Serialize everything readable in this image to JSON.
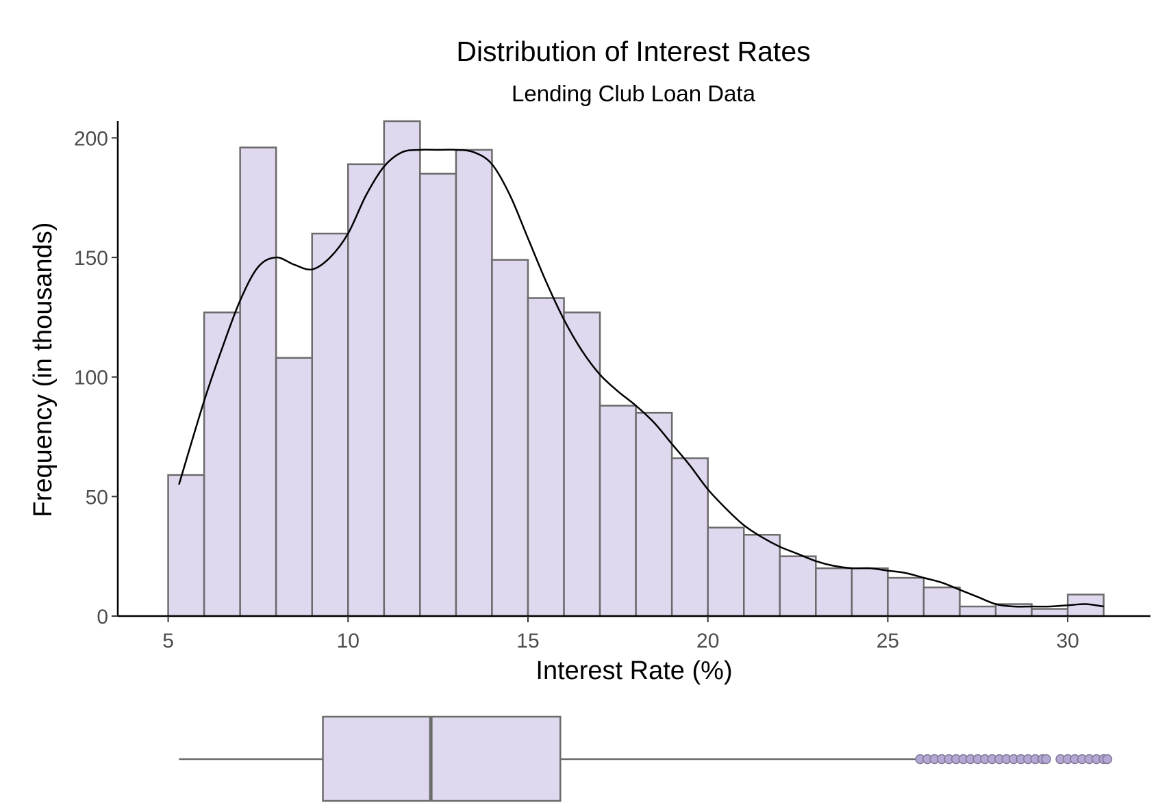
{
  "chart_data": [
    {
      "type": "histogram",
      "title": "Distribution of Interest Rates",
      "subtitle": "Lending Club Loan Data",
      "xlabel": "Interest Rate (%)",
      "ylabel": "Frequency (in thousands)",
      "xlim": [
        3.6,
        32.3
      ],
      "ylim": [
        0,
        207
      ],
      "x_ticks": [
        5,
        10,
        15,
        20,
        25,
        30
      ],
      "y_ticks": [
        0,
        50,
        100,
        150,
        200
      ],
      "grid": false,
      "legend": "none",
      "bins": [
        {
          "start": 5,
          "end": 6,
          "value": 59
        },
        {
          "start": 6,
          "end": 7,
          "value": 127
        },
        {
          "start": 7,
          "end": 8,
          "value": 196
        },
        {
          "start": 8,
          "end": 9,
          "value": 108
        },
        {
          "start": 9,
          "end": 10,
          "value": 160
        },
        {
          "start": 10,
          "end": 11,
          "value": 189
        },
        {
          "start": 11,
          "end": 12,
          "value": 207
        },
        {
          "start": 12,
          "end": 13,
          "value": 185
        },
        {
          "start": 13,
          "end": 14,
          "value": 195
        },
        {
          "start": 14,
          "end": 15,
          "value": 149
        },
        {
          "start": 15,
          "end": 16,
          "value": 133
        },
        {
          "start": 16,
          "end": 17,
          "value": 127
        },
        {
          "start": 17,
          "end": 18,
          "value": 88
        },
        {
          "start": 18,
          "end": 19,
          "value": 85
        },
        {
          "start": 19,
          "end": 20,
          "value": 66
        },
        {
          "start": 20,
          "end": 21,
          "value": 37
        },
        {
          "start": 21,
          "end": 22,
          "value": 34
        },
        {
          "start": 22,
          "end": 23,
          "value": 25
        },
        {
          "start": 23,
          "end": 24,
          "value": 20
        },
        {
          "start": 24,
          "end": 25,
          "value": 20
        },
        {
          "start": 25,
          "end": 26,
          "value": 16
        },
        {
          "start": 26,
          "end": 27,
          "value": 12
        },
        {
          "start": 27,
          "end": 28,
          "value": 4
        },
        {
          "start": 28,
          "end": 29,
          "value": 5
        },
        {
          "start": 29,
          "end": 30,
          "value": 3
        },
        {
          "start": 30,
          "end": 31,
          "value": 9
        }
      ],
      "density_curve": {
        "x": [
          5.3,
          6.0,
          6.5,
          7.0,
          7.5,
          8.0,
          8.5,
          9.0,
          9.5,
          10.0,
          10.5,
          11.0,
          11.5,
          12.0,
          12.5,
          13.0,
          13.5,
          14.0,
          14.5,
          15.0,
          15.5,
          16.0,
          16.5,
          17.0,
          17.5,
          18.0,
          18.5,
          19.0,
          19.5,
          20.0,
          20.5,
          21.0,
          21.5,
          22.0,
          22.5,
          23.0,
          23.5,
          24.0,
          24.5,
          25.0,
          25.5,
          26.0,
          26.5,
          27.0,
          27.5,
          28.0,
          28.5,
          29.0,
          29.5,
          30.0,
          30.5,
          31.0
        ],
        "y": [
          55,
          90,
          112,
          132,
          146,
          150,
          147,
          145,
          150,
          160,
          176,
          188,
          194,
          195,
          195,
          195,
          194,
          189,
          176,
          158,
          140,
          124,
          111,
          101,
          94,
          88,
          81,
          72,
          63,
          53,
          45,
          38,
          33,
          29,
          26,
          23,
          21,
          20,
          20,
          19,
          18,
          16,
          14,
          11,
          8,
          5,
          4,
          4,
          4,
          4.5,
          5,
          4
        ]
      },
      "colors": {
        "fill": "#dfd8ef",
        "stroke": "#6b6b6b",
        "curve": "#000000"
      }
    },
    {
      "type": "boxplot",
      "whisker_low": 5.3,
      "q1": 9.3,
      "median": 12.3,
      "q3": 15.9,
      "whisker_high": 25.8,
      "outliers": [
        25.9,
        26.1,
        26.3,
        26.5,
        26.7,
        26.9,
        27.1,
        27.3,
        27.5,
        27.7,
        27.9,
        28.1,
        28.3,
        28.5,
        28.7,
        28.9,
        29.1,
        29.3,
        29.4,
        29.8,
        30.0,
        30.2,
        30.4,
        30.6,
        30.8,
        31.0,
        31.1
      ],
      "colors": {
        "fill": "#dfd8ef",
        "stroke": "#6b6b6b",
        "outlier_fill": "#b3a7d3",
        "outlier_stroke": "#7e7795"
      }
    }
  ]
}
